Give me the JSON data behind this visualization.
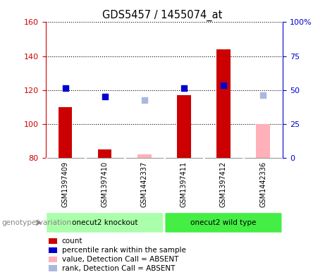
{
  "title": "GDS5457 / 1455074_at",
  "samples": [
    "GSM1397409",
    "GSM1397410",
    "GSM1442337",
    "GSM1397411",
    "GSM1397412",
    "GSM1442336"
  ],
  "count_values": [
    110,
    85,
    82,
    117,
    144,
    100
  ],
  "rank_values": [
    121,
    116,
    114,
    121,
    123,
    117
  ],
  "absent": [
    false,
    false,
    true,
    false,
    false,
    true
  ],
  "ylim_left": [
    80,
    160
  ],
  "ylim_right": [
    0,
    100
  ],
  "yticks_left": [
    80,
    100,
    120,
    140,
    160
  ],
  "yticks_right": [
    0,
    25,
    50,
    75,
    100
  ],
  "ytick_labels_right": [
    "0",
    "25",
    "50",
    "75",
    "100%"
  ],
  "left_axis_color": "#cc0000",
  "right_axis_color": "#0000cc",
  "bar_color_present": "#cc0000",
  "bar_color_absent": "#ffb0b8",
  "marker_color_present": "#0000cc",
  "marker_color_absent": "#aab8dd",
  "groups": [
    {
      "label": "onecut2 knockout",
      "indices": [
        0,
        1,
        2
      ],
      "color": "#aaffaa"
    },
    {
      "label": "onecut2 wild type",
      "indices": [
        3,
        4,
        5
      ],
      "color": "#44ee44"
    }
  ],
  "group_label": "genotype/variation",
  "legend_items": [
    {
      "label": "count",
      "color": "#cc0000",
      "type": "bar"
    },
    {
      "label": "percentile rank within the sample",
      "color": "#0000cc",
      "type": "marker"
    },
    {
      "label": "value, Detection Call = ABSENT",
      "color": "#ffb0b8",
      "type": "bar"
    },
    {
      "label": "rank, Detection Call = ABSENT",
      "color": "#aab8dd",
      "type": "marker"
    }
  ],
  "bar_width": 0.35,
  "marker_size": 40,
  "background_color": "#ffffff",
  "label_bg_color": "#cccccc",
  "separator_color": "#ffffff"
}
